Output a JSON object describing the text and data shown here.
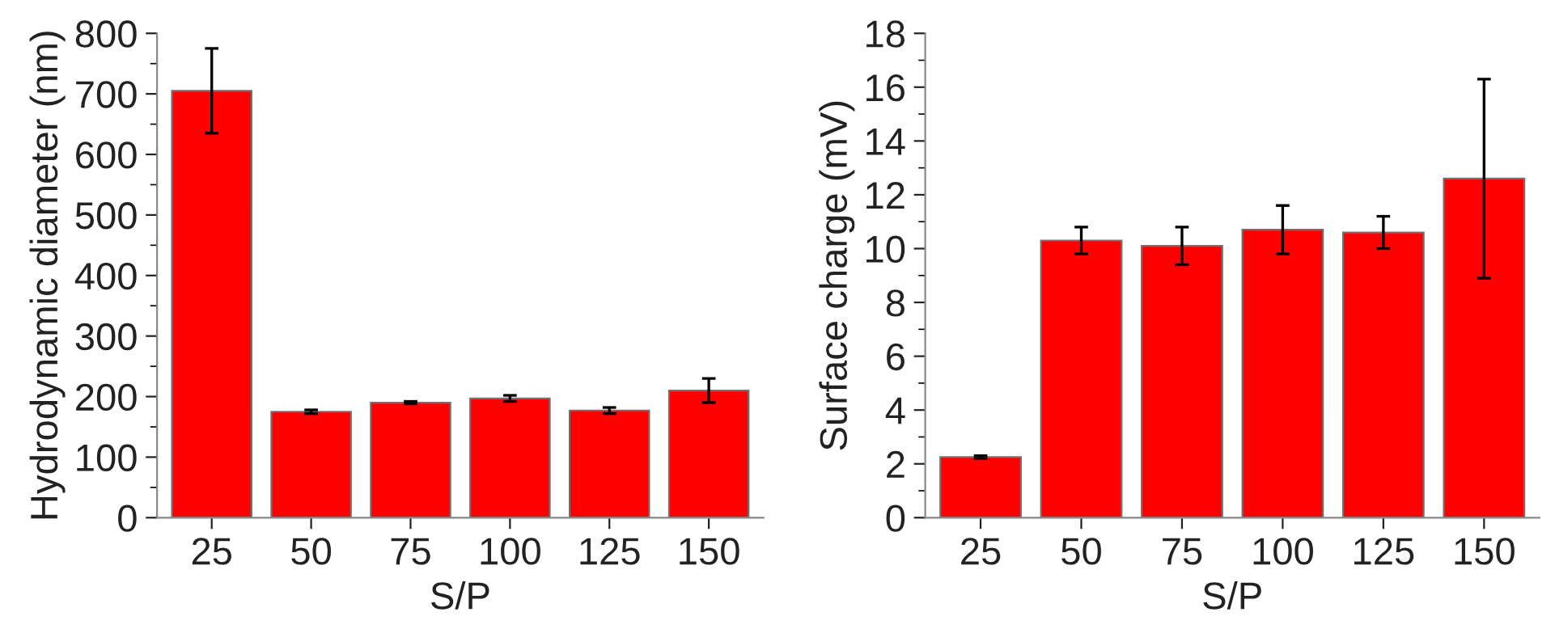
{
  "chart_data": [
    {
      "type": "bar",
      "xlabel": "S/P",
      "ylabel": "Hydrodynamic diameter (nm)",
      "categories": [
        "25",
        "50",
        "75",
        "100",
        "125",
        "150"
      ],
      "color": "#ff0000",
      "values": [
        705,
        175,
        190,
        197,
        177,
        210
      ],
      "errors": [
        70,
        3,
        2,
        5,
        5,
        20
      ],
      "ylim": [
        0,
        800
      ],
      "yticks": [
        0,
        100,
        200,
        300,
        400,
        500,
        600,
        700,
        800
      ],
      "grid": false,
      "legend": false
    },
    {
      "type": "bar",
      "xlabel": "S/P",
      "ylabel": "Surface charge (mV)",
      "categories": [
        "25",
        "50",
        "75",
        "100",
        "125",
        "150"
      ],
      "color": "#ff0000",
      "values": [
        2.25,
        10.3,
        10.1,
        10.7,
        10.6,
        12.6
      ],
      "errors": [
        0.05,
        0.5,
        0.7,
        0.9,
        0.6,
        3.7
      ],
      "ylim": [
        0,
        18
      ],
      "yticks": [
        0,
        2,
        4,
        6,
        8,
        10,
        12,
        14,
        16,
        18
      ],
      "grid": false,
      "legend": false
    }
  ]
}
